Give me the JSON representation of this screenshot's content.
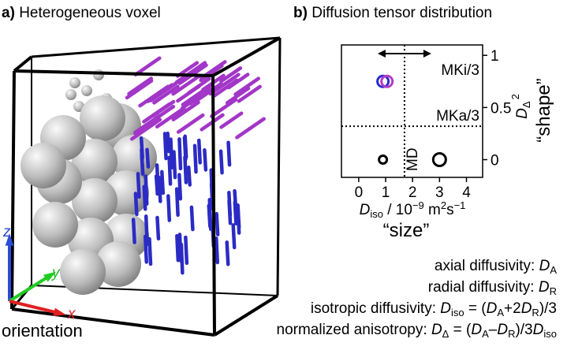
{
  "panel_a": {
    "label": "a)",
    "title": "Heterogeneous voxel",
    "axes": {
      "x": "x",
      "y": "y",
      "z": "z"
    },
    "caption": "orientation"
  },
  "chart_data": {
    "type": "scatter",
    "label": "b)",
    "title": "Diffusion tensor distribution",
    "x_label": [
      "D",
      "iso",
      " / 10",
      "−9",
      " m",
      "2",
      "s",
      "−1"
    ],
    "x_caption": "“size”",
    "y_label": [
      "D",
      "Δ",
      "2"
    ],
    "y_caption": "“shape”",
    "x": [
      0.9,
      1.05,
      0.9,
      3.0
    ],
    "values": [
      0.75,
      0.75,
      0,
      0
    ],
    "sizes": [
      7,
      7,
      5,
      8
    ],
    "colors": [
      "#2b2bd6",
      "#b33cc4",
      "#000000",
      "#000000"
    ],
    "xlim": [
      -0.64,
      4.6
    ],
    "ylim": [
      -0.17,
      1.1
    ],
    "xticks": [
      0,
      1,
      2,
      3,
      4
    ],
    "yticks": [
      0,
      0.5,
      1
    ],
    "vlines": [
      1.7
    ],
    "hlines": [
      0.32
    ],
    "annotations": [
      "MKi/3",
      "MKa/3",
      "MD"
    ]
  },
  "equations": [
    [
      "axial diffusivity: ",
      "D",
      "A"
    ],
    [
      "radial diffusivity: ",
      "D",
      "R"
    ],
    [
      "isotropic diffusivity: ",
      "D",
      "iso",
      " = (",
      "D",
      "A",
      "+2",
      "D",
      "R",
      ")/3"
    ],
    [
      "normalized anisotropy: ",
      "D",
      "Δ",
      " = (",
      "D",
      "A",
      "–",
      "D",
      "R",
      ")/3",
      "D",
      "iso"
    ]
  ]
}
